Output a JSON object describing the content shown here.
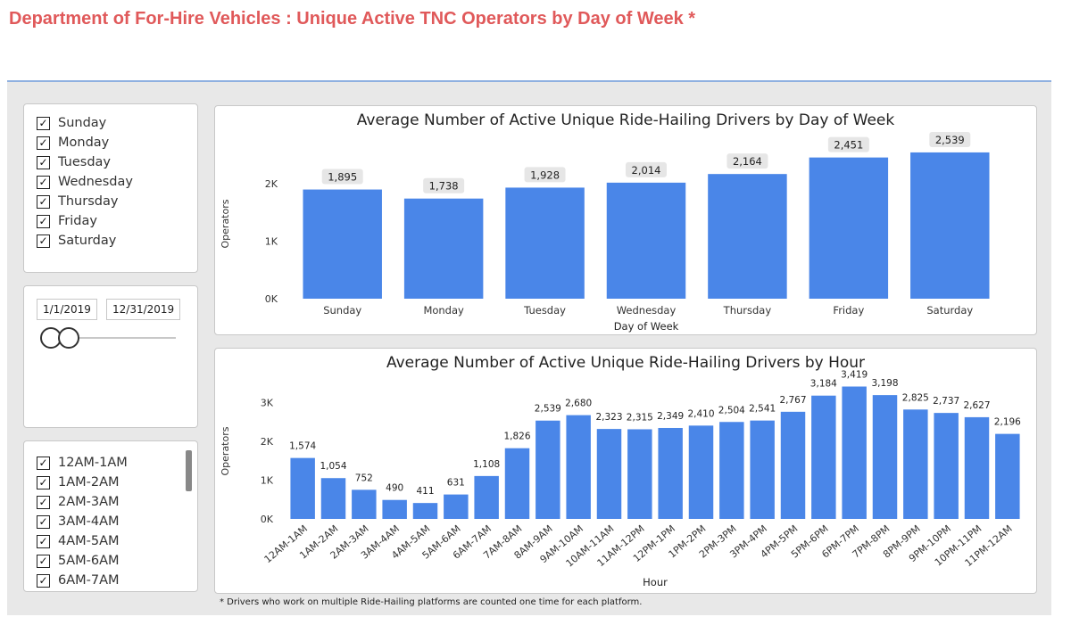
{
  "page": {
    "title": "Department of For-Hire Vehicles : Unique Active TNC Operators by Day of Week *",
    "footnote": "* Drivers who work on multiple Ride-Hailing platforms are counted one time for each platform."
  },
  "day_slicer": {
    "items": [
      {
        "label": "Sunday",
        "checked": true
      },
      {
        "label": "Monday",
        "checked": true
      },
      {
        "label": "Tuesday",
        "checked": true
      },
      {
        "label": "Wednesday",
        "checked": true
      },
      {
        "label": "Thursday",
        "checked": true
      },
      {
        "label": "Friday",
        "checked": true
      },
      {
        "label": "Saturday",
        "checked": true
      }
    ]
  },
  "date_slicer": {
    "start": "1/1/2019",
    "end": "12/31/2019"
  },
  "hour_slicer": {
    "items": [
      {
        "label": "12AM-1AM",
        "checked": true
      },
      {
        "label": "1AM-2AM",
        "checked": true
      },
      {
        "label": "2AM-3AM",
        "checked": true
      },
      {
        "label": "3AM-4AM",
        "checked": true
      },
      {
        "label": "4AM-5AM",
        "checked": true
      },
      {
        "label": "5AM-6AM",
        "checked": true
      },
      {
        "label": "6AM-7AM",
        "checked": true
      }
    ]
  },
  "colors": {
    "bar": "#4a86e8",
    "title": "#e0595a",
    "label_bg": "#e6e6e6"
  },
  "chart_data": [
    {
      "type": "bar",
      "title": "Average Number of Active Unique Ride-Hailing Drivers by Day of Week",
      "xlabel": "Day of Week",
      "ylabel": "Operators",
      "ylim": [
        0,
        2600
      ],
      "yticks": [
        {
          "value": 0,
          "label": "0K"
        },
        {
          "value": 1000,
          "label": "1K"
        },
        {
          "value": 2000,
          "label": "2K"
        }
      ],
      "categories": [
        "Sunday",
        "Monday",
        "Tuesday",
        "Wednesday",
        "Thursday",
        "Friday",
        "Saturday"
      ],
      "values": [
        1895,
        1738,
        1928,
        2014,
        2164,
        2451,
        2539
      ],
      "value_labels": [
        "1,895",
        "1,738",
        "1,928",
        "2,014",
        "2,164",
        "2,451",
        "2,539"
      ]
    },
    {
      "type": "bar",
      "title": "Average Number of Active Unique Ride-Hailing Drivers by Hour",
      "xlabel": "Hour",
      "ylabel": "Operators",
      "ylim": [
        0,
        3500
      ],
      "yticks": [
        {
          "value": 0,
          "label": "0K"
        },
        {
          "value": 1000,
          "label": "1K"
        },
        {
          "value": 2000,
          "label": "2K"
        },
        {
          "value": 3000,
          "label": "3K"
        }
      ],
      "categories": [
        "12AM-1AM",
        "1AM-2AM",
        "2AM-3AM",
        "3AM-4AM",
        "4AM-5AM",
        "5AM-6AM",
        "6AM-7AM",
        "7AM-8AM",
        "8AM-9AM",
        "9AM-10AM",
        "10AM-11AM",
        "11AM-12PM",
        "12PM-1PM",
        "1PM-2PM",
        "2PM-3PM",
        "3PM-4PM",
        "4PM-5PM",
        "5PM-6PM",
        "6PM-7PM",
        "7PM-8PM",
        "8PM-9PM",
        "9PM-10PM",
        "10PM-11PM",
        "11PM-12AM"
      ],
      "values": [
        1574,
        1054,
        752,
        490,
        411,
        631,
        1108,
        1826,
        2539,
        2680,
        2323,
        2315,
        2349,
        2410,
        2504,
        2541,
        2767,
        3184,
        3419,
        3198,
        2825,
        2737,
        2627,
        2196
      ],
      "value_labels": [
        "1,574",
        "1,054",
        "752",
        "490",
        "411",
        "631",
        "1,108",
        "1,826",
        "2,539",
        "2,680",
        "2,323",
        "2,315",
        "2,349",
        "2,410",
        "2,504",
        "2,541",
        "2,767",
        "3,184",
        "3,419",
        "3,198",
        "2,825",
        "2,737",
        "2,627",
        "2,196"
      ]
    }
  ]
}
